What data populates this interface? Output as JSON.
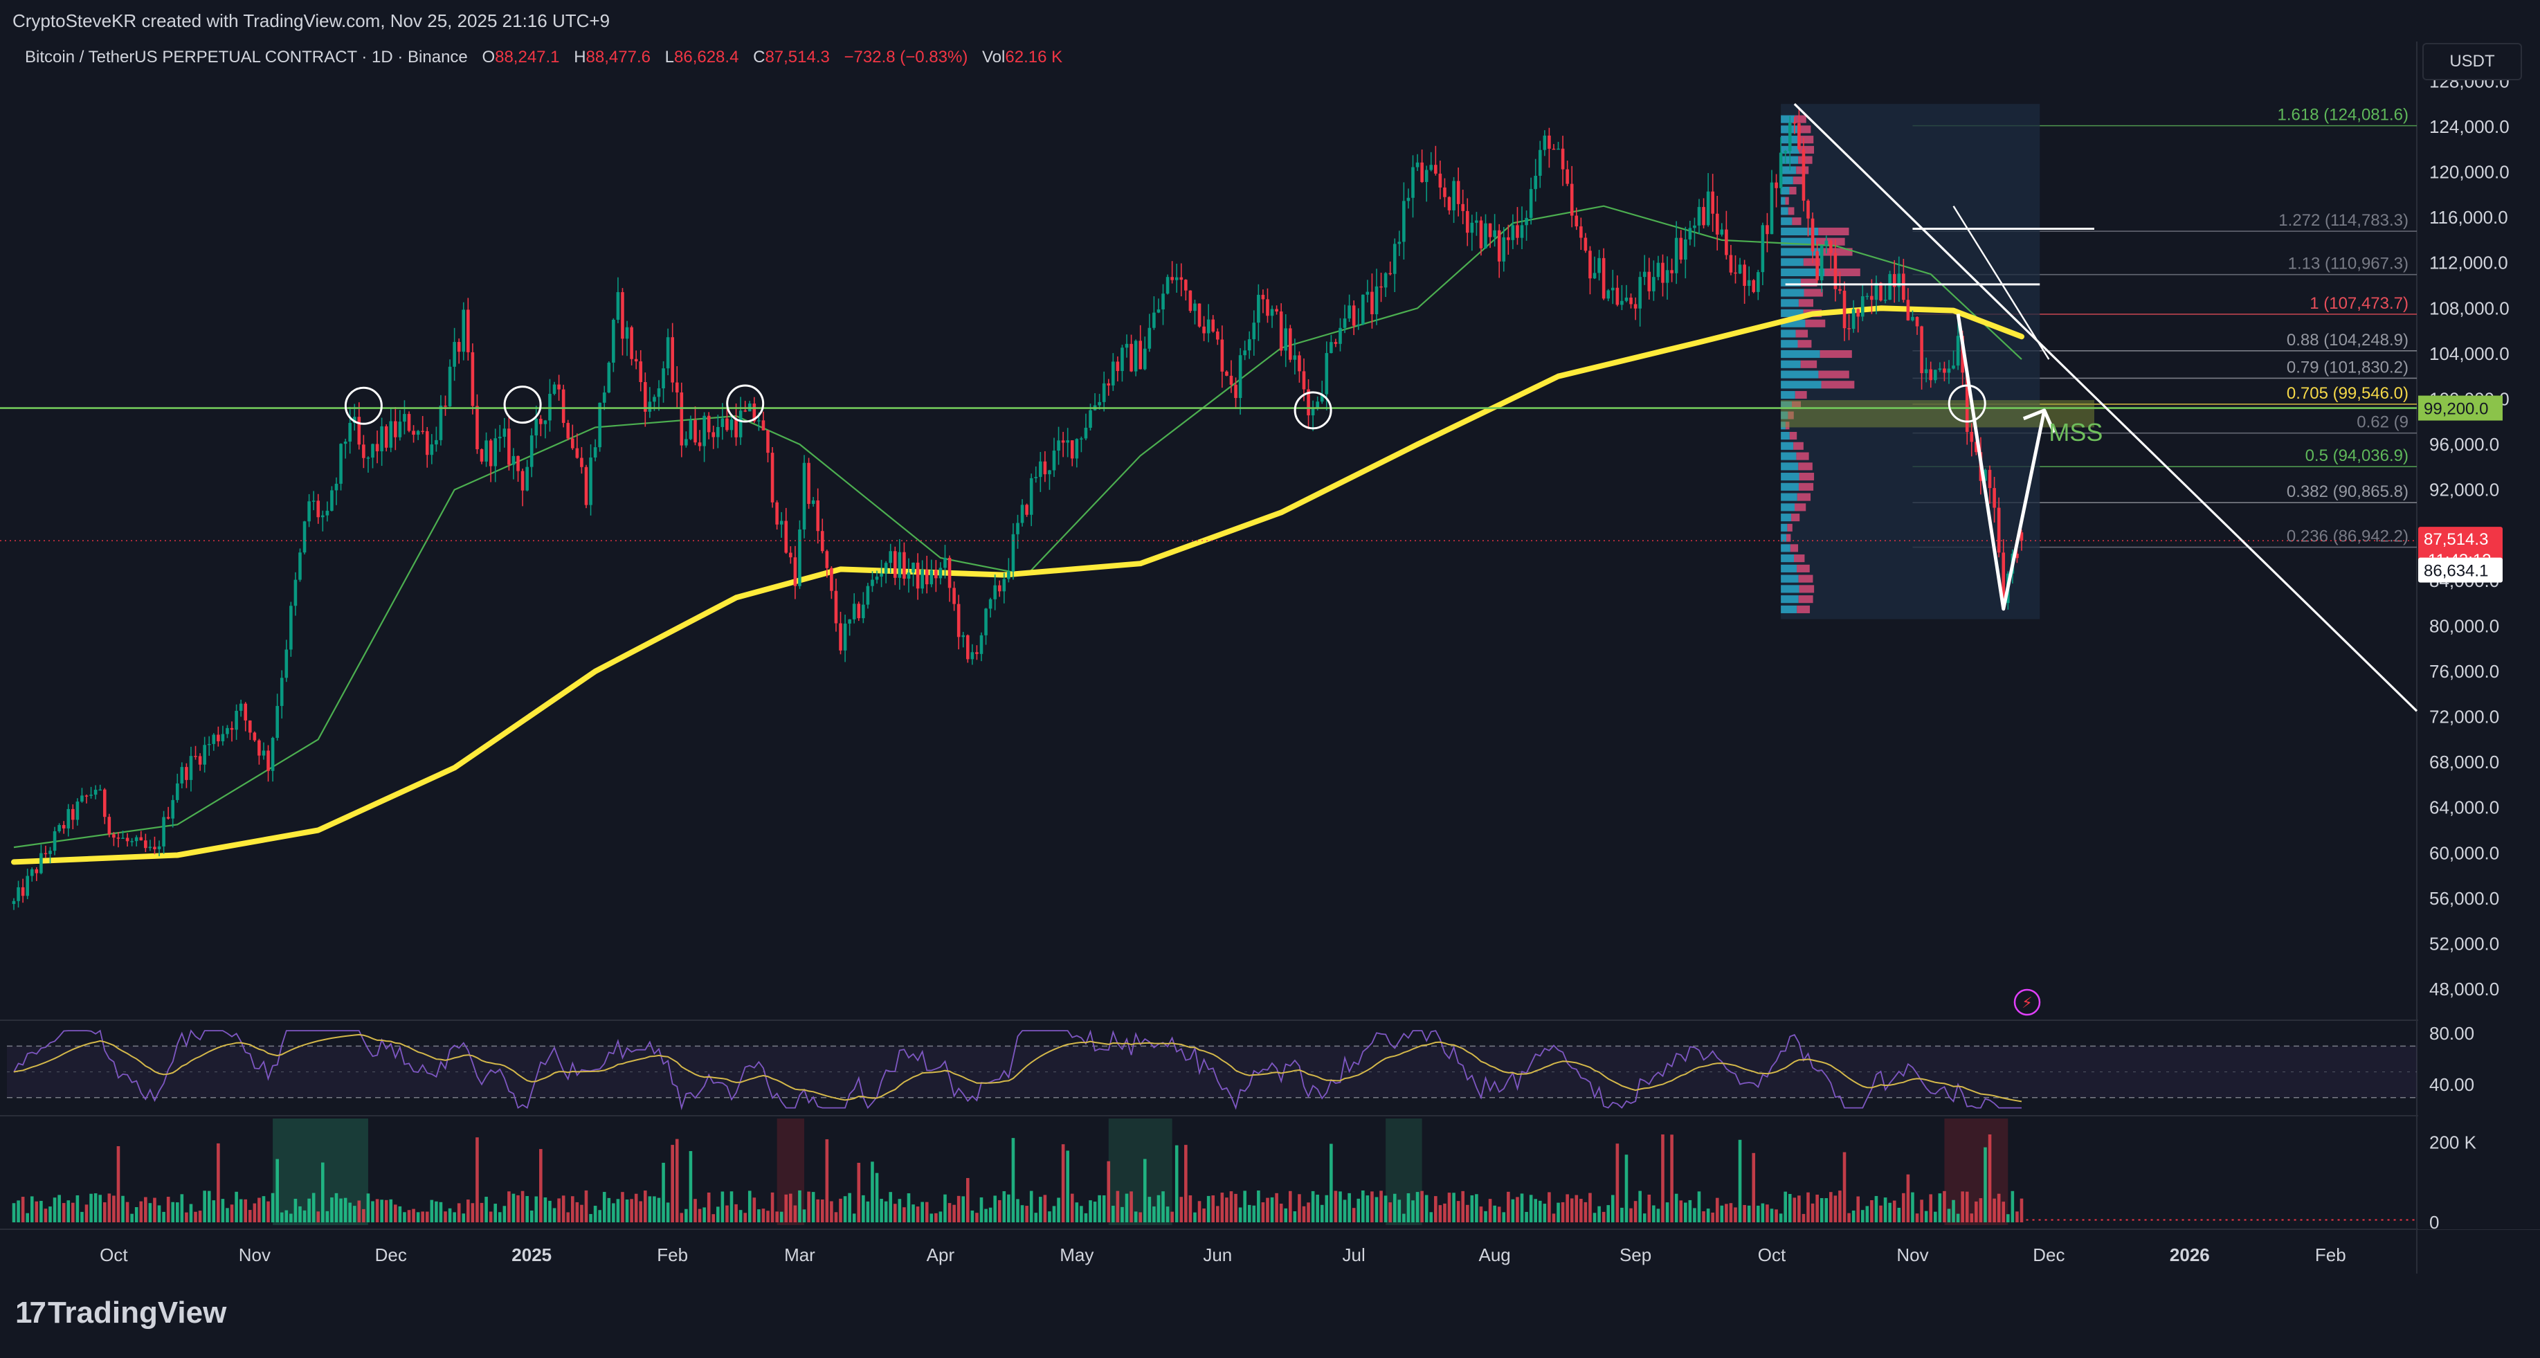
{
  "header": {
    "attribution": "CryptoSteveKR created with TradingView.com, Nov 25, 2025 21:16 UTC+9"
  },
  "legend": {
    "symbol": "Bitcoin / TetherUS PERPETUAL CONTRACT · 1D · Binance",
    "open_label": "O",
    "open": "88,247.1",
    "high_label": "H",
    "high": "88,477.6",
    "low_label": "L",
    "low": "86,628.4",
    "close_label": "C",
    "close": "87,514.3",
    "change": "−732.8 (−0.83%)",
    "vol_label": "Vol",
    "vol": "62.16 K"
  },
  "currency": "USDT",
  "brand": {
    "logo": "17",
    "name": "TradingView"
  },
  "colors": {
    "background": "#131722",
    "up": "#089981",
    "down": "#f23645",
    "ma_long": "#ffeb3b",
    "ma_short": "#4caf50",
    "support": "#72c85a",
    "fib": "#787b86",
    "rsi": "#7e57c2",
    "text": "#d1d4dc"
  },
  "chart_data": {
    "type": "candlestick",
    "symbol": "BTCUSDT.P",
    "timeframe": "1D",
    "x_axis": {
      "labels": [
        "Oct",
        "Nov",
        "Dec",
        "2025",
        "Feb",
        "Mar",
        "Apr",
        "May",
        "Jun",
        "Jul",
        "Aug",
        "Sep",
        "Oct",
        "Nov",
        "Dec",
        "2026",
        "Feb"
      ],
      "bold": [
        "2025",
        "2026"
      ],
      "start": "2024-09-09",
      "end": "2026-02-20"
    },
    "y_axis": {
      "scale": "linear",
      "range": [
        45500,
        131500
      ],
      "ticks": [
        48000,
        52000,
        56000,
        60000,
        64000,
        68000,
        72000,
        76000,
        80000,
        84000,
        88000,
        92000,
        96000,
        100000,
        104000,
        108000,
        112000,
        116000,
        120000,
        124000,
        128000
      ],
      "tick_labels": [
        "48,000.0",
        "52,000.0",
        "56,000.0",
        "60,000.0",
        "64,000.0",
        "68,000.0",
        "72,000.0",
        "76,000.0",
        "80,000.0",
        "84,000.0",
        "88,000.0",
        "92,000.0",
        "96,000.0",
        "100,000.0",
        "104,000.0",
        "108,000.0",
        "112,000.0",
        "116,000.0",
        "120,000.0",
        "124,000.0",
        "128,000.0"
      ]
    },
    "price_path": [
      [
        "2024-09-09",
        55500
      ],
      [
        "2024-09-20",
        62500
      ],
      [
        "2024-09-27",
        65800
      ],
      [
        "2024-10-01",
        61500
      ],
      [
        "2024-10-10",
        59800
      ],
      [
        "2024-10-15",
        66500
      ],
      [
        "2024-10-20",
        68800
      ],
      [
        "2024-10-29",
        72500
      ],
      [
        "2024-11-04",
        67800
      ],
      [
        "2024-11-07",
        76000
      ],
      [
        "2024-11-13",
        91000
      ],
      [
        "2024-11-17",
        89000
      ],
      [
        "2024-11-22",
        98500
      ],
      [
        "2024-11-25",
        94000
      ],
      [
        "2024-11-28",
        96000
      ],
      [
        "2024-12-05",
        98000
      ],
      [
        "2024-12-10",
        96000
      ],
      [
        "2024-12-17",
        106500
      ],
      [
        "2024-12-20",
        95000
      ],
      [
        "2024-12-26",
        96000
      ],
      [
        "2024-12-30",
        93000
      ],
      [
        "2025-01-06",
        102000
      ],
      [
        "2025-01-13",
        92000
      ],
      [
        "2025-01-20",
        108000
      ],
      [
        "2025-01-27",
        99000
      ],
      [
        "2025-01-31",
        104000
      ],
      [
        "2025-02-03",
        97000
      ],
      [
        "2025-02-10",
        97500
      ],
      [
        "2025-02-20",
        98500
      ],
      [
        "2025-02-25",
        88000
      ],
      [
        "2025-02-28",
        84000
      ],
      [
        "2025-03-02",
        94000
      ],
      [
        "2025-03-10",
        78500
      ],
      [
        "2025-03-20",
        86000
      ],
      [
        "2025-03-28",
        84000
      ],
      [
        "2025-04-02",
        85000
      ],
      [
        "2025-04-07",
        76500
      ],
      [
        "2025-04-15",
        84500
      ],
      [
        "2025-04-22",
        93500
      ],
      [
        "2025-05-01",
        96500
      ],
      [
        "2025-05-09",
        103000
      ],
      [
        "2025-05-15",
        104000
      ],
      [
        "2025-05-22",
        111000
      ],
      [
        "2025-05-28",
        108000
      ],
      [
        "2025-06-05",
        101000
      ],
      [
        "2025-06-10",
        110000
      ],
      [
        "2025-06-17",
        104000
      ],
      [
        "2025-06-22",
        99000
      ],
      [
        "2025-06-28",
        107500
      ],
      [
        "2025-07-07",
        108500
      ],
      [
        "2025-07-14",
        120000
      ],
      [
        "2025-07-22",
        118000
      ],
      [
        "2025-08-02",
        113000
      ],
      [
        "2025-08-08",
        117000
      ],
      [
        "2025-08-13",
        123500
      ],
      [
        "2025-08-20",
        113000
      ],
      [
        "2025-08-30",
        108000
      ],
      [
        "2025-09-07",
        111500
      ],
      [
        "2025-09-17",
        117000
      ],
      [
        "2025-09-26",
        109000
      ],
      [
        "2025-10-01",
        118000
      ],
      [
        "2025-10-06",
        125500
      ],
      [
        "2025-10-10",
        112000
      ],
      [
        "2025-10-14",
        112500
      ],
      [
        "2025-10-17",
        106500
      ],
      [
        "2025-10-22",
        108000
      ],
      [
        "2025-10-29",
        112000
      ],
      [
        "2025-11-04",
        101500
      ],
      [
        "2025-11-11",
        104500
      ],
      [
        "2025-11-14",
        95000
      ],
      [
        "2025-11-18",
        92500
      ],
      [
        "2025-11-21",
        82500
      ],
      [
        "2025-11-23",
        86500
      ],
      [
        "2025-11-25",
        87514
      ]
    ],
    "ma_long": [
      [
        "2024-09-09",
        59200
      ],
      [
        "2024-10-15",
        59800
      ],
      [
        "2024-11-15",
        62000
      ],
      [
        "2024-12-15",
        67500
      ],
      [
        "2025-01-15",
        76000
      ],
      [
        "2025-02-15",
        82500
      ],
      [
        "2025-03-10",
        85000
      ],
      [
        "2025-04-15",
        84500
      ],
      [
        "2025-05-15",
        85500
      ],
      [
        "2025-06-15",
        90000
      ],
      [
        "2025-07-15",
        96000
      ],
      [
        "2025-08-15",
        102000
      ],
      [
        "2025-09-15",
        105000
      ],
      [
        "2025-10-10",
        107500
      ],
      [
        "2025-10-25",
        108000
      ],
      [
        "2025-11-10",
        107800
      ],
      [
        "2025-11-25",
        105500
      ]
    ],
    "ma_short": [
      [
        "2024-09-09",
        60500
      ],
      [
        "2024-10-15",
        62500
      ],
      [
        "2024-11-15",
        70000
      ],
      [
        "2024-12-15",
        92000
      ],
      [
        "2025-01-15",
        97500
      ],
      [
        "2025-02-15",
        98500
      ],
      [
        "2025-03-01",
        96000
      ],
      [
        "2025-04-01",
        86000
      ],
      [
        "2025-04-20",
        84500
      ],
      [
        "2025-05-15",
        95000
      ],
      [
        "2025-06-15",
        104500
      ],
      [
        "2025-07-15",
        108000
      ],
      [
        "2025-08-05",
        115500
      ],
      [
        "2025-08-25",
        117000
      ],
      [
        "2025-09-20",
        114000
      ],
      [
        "2025-10-15",
        113500
      ],
      [
        "2025-11-05",
        111000
      ],
      [
        "2025-11-25",
        103500
      ]
    ],
    "support_line": {
      "price": 99200,
      "label": "99,200.0"
    },
    "current_price": {
      "price": 87514.3,
      "label": "87,514.3",
      "countdown": "11:43:12"
    },
    "crosshair_price": {
      "price": 86634.1,
      "label": "86,634.1"
    },
    "fib_levels": [
      {
        "ratio": 1.618,
        "price": 124081.6,
        "label": "1.618 (124,081.6)",
        "color": "#5fb85a"
      },
      {
        "ratio": 1.272,
        "price": 114783.3,
        "label": "1.272 (114,783.3)",
        "color": "#787b86"
      },
      {
        "ratio": 1.13,
        "price": 110967.3,
        "label": "1.13 (110,967.3)",
        "color": "#787b86"
      },
      {
        "ratio": 1,
        "price": 107473.7,
        "label": "1 (107,473.7)",
        "color": "#e84e5a"
      },
      {
        "ratio": 0.88,
        "price": 104248.9,
        "label": "0.88 (104,248.9)",
        "color": "#9598a1"
      },
      {
        "ratio": 0.79,
        "price": 101830.2,
        "label": "0.79 (101,830.2)",
        "color": "#9598a1"
      },
      {
        "ratio": 0.705,
        "price": 99546.0,
        "label": "0.705 (99,546.0)",
        "color": "#f5d848"
      },
      {
        "ratio": 0.62,
        "price": 97000,
        "label": "0.62 (9",
        "color": "#787b86"
      },
      {
        "ratio": 0.5,
        "price": 94036.9,
        "label": "0.5 (94,036.9)",
        "color": "#5fb85a"
      },
      {
        "ratio": 0.382,
        "price": 90865.8,
        "label": "0.382 (90,865.8)",
        "color": "#9598a1"
      },
      {
        "ratio": 0.236,
        "price": 86942.2,
        "label": "0.236 (86,942.2)",
        "color": "#787b86"
      }
    ],
    "annotations": {
      "mss_label": "MSS",
      "circles": [
        {
          "date": "2024-11-25",
          "price": 99400
        },
        {
          "date": "2024-12-30",
          "price": 99500
        },
        {
          "date": "2025-02-17",
          "price": 99600
        },
        {
          "date": "2025-06-22",
          "price": 99000
        },
        {
          "date": "2025-11-13",
          "price": 99600
        }
      ],
      "trendline": [
        [
          "2025-10-06",
          126000
        ],
        [
          "2026-02-20",
          72500
        ]
      ],
      "trendline_short": [
        [
          "2025-11-10",
          117000
        ],
        [
          "2025-12-01",
          103500
        ]
      ],
      "projection": [
        [
          "2025-11-11",
          107500
        ],
        [
          "2025-11-21",
          81500
        ],
        [
          "2025-11-30",
          99000
        ]
      ],
      "white_levels": [
        {
          "price": 110100,
          "from": "2025-10-04",
          "to": "2025-11-29"
        },
        {
          "price": 115000,
          "from": "2025-11-01",
          "to": "2025-12-11"
        }
      ]
    },
    "rsi": {
      "levels": [
        70,
        30
      ],
      "tick_labels": [
        "80.00",
        "40.00"
      ],
      "range": [
        18,
        88
      ]
    },
    "volume": {
      "tick_labels": [
        "200 K",
        "0"
      ],
      "range": [
        0,
        260
      ]
    }
  }
}
